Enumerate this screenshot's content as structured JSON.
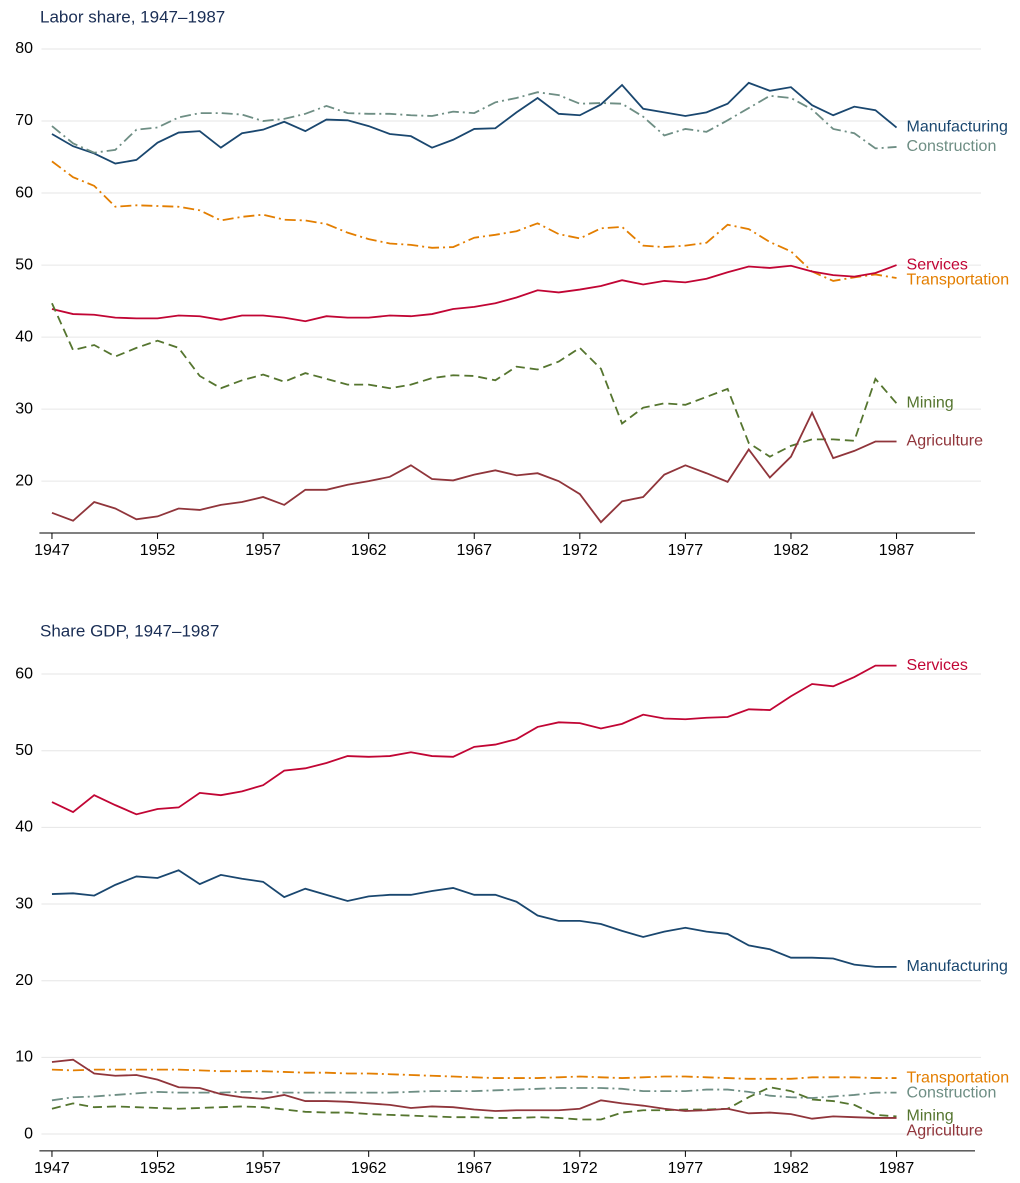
{
  "chart_data": [
    {
      "type": "line",
      "title": "Labor share, 1947–1987",
      "x": [
        1947,
        1948,
        1949,
        1950,
        1951,
        1952,
        1953,
        1954,
        1955,
        1956,
        1957,
        1958,
        1959,
        1960,
        1961,
        1962,
        1963,
        1964,
        1965,
        1966,
        1967,
        1968,
        1969,
        1970,
        1971,
        1972,
        1973,
        1974,
        1975,
        1976,
        1977,
        1978,
        1979,
        1980,
        1981,
        1982,
        1983,
        1984,
        1985,
        1986,
        1987
      ],
      "xlim": [
        1946.5,
        1991
      ],
      "xticks": [
        1947,
        1952,
        1957,
        1962,
        1967,
        1972,
        1977,
        1982,
        1987
      ],
      "ylim": [
        12.8,
        81
      ],
      "yticks": [
        20,
        30,
        40,
        50,
        60,
        70,
        80
      ],
      "grid": true,
      "series": [
        {
          "name": "Manufacturing",
          "color": "#1a476f",
          "style": "solid",
          "values": [
            68.2,
            66.5,
            65.5,
            64.1,
            64.6,
            67.0,
            68.4,
            68.6,
            66.3,
            68.3,
            68.8,
            69.9,
            68.6,
            70.2,
            70.1,
            69.3,
            68.2,
            67.9,
            66.3,
            67.4,
            68.9,
            69.0,
            71.2,
            73.2,
            71.0,
            70.8,
            72.3,
            75.0,
            71.7,
            71.2,
            70.7,
            71.2,
            72.4,
            75.3,
            74.2,
            74.7,
            72.2,
            70.8,
            72.0,
            71.5,
            69.1
          ]
        },
        {
          "name": "Construction",
          "color": "#6e8e84",
          "style": "dashdot",
          "values": [
            69.3,
            66.9,
            65.6,
            66.0,
            68.8,
            69.1,
            70.5,
            71.1,
            71.1,
            70.9,
            70.0,
            70.3,
            71.0,
            72.1,
            71.1,
            71.0,
            71.0,
            70.8,
            70.7,
            71.3,
            71.1,
            72.6,
            73.2,
            74.0,
            73.6,
            72.4,
            72.5,
            72.4,
            70.6,
            68.0,
            68.9,
            68.5,
            70.1,
            71.8,
            73.5,
            73.2,
            71.6,
            68.9,
            68.3,
            66.2,
            66.4
          ]
        },
        {
          "name": "Transportation",
          "color": "#e37e00",
          "style": "dashdot",
          "values": [
            64.4,
            62.2,
            61.0,
            58.1,
            58.3,
            58.2,
            58.1,
            57.6,
            56.2,
            56.7,
            57.0,
            56.3,
            56.2,
            55.7,
            54.5,
            53.6,
            53.0,
            52.8,
            52.4,
            52.5,
            53.8,
            54.2,
            54.7,
            55.8,
            54.3,
            53.7,
            55.1,
            55.3,
            52.7,
            52.5,
            52.7,
            53.1,
            55.6,
            55.0,
            53.2,
            51.9,
            49.1,
            47.8,
            48.3,
            48.7,
            48.2
          ]
        },
        {
          "name": "Services",
          "color": "#c10534",
          "style": "solid",
          "values": [
            43.9,
            43.2,
            43.1,
            42.7,
            42.6,
            42.6,
            43.0,
            42.9,
            42.4,
            43.0,
            43.0,
            42.7,
            42.2,
            42.9,
            42.7,
            42.7,
            43.0,
            42.9,
            43.2,
            43.9,
            44.2,
            44.7,
            45.5,
            46.5,
            46.2,
            46.6,
            47.1,
            47.9,
            47.3,
            47.8,
            47.6,
            48.1,
            49.0,
            49.8,
            49.6,
            49.9,
            49.1,
            48.6,
            48.4,
            48.9,
            50.0
          ]
        },
        {
          "name": "Mining",
          "color": "#55752f",
          "style": "dash",
          "values": [
            44.7,
            38.2,
            38.9,
            37.3,
            38.5,
            39.5,
            38.5,
            34.6,
            32.9,
            34.0,
            34.8,
            33.8,
            35.0,
            34.2,
            33.4,
            33.4,
            32.9,
            33.4,
            34.3,
            34.7,
            34.6,
            34.0,
            35.9,
            35.5,
            36.6,
            38.5,
            35.6,
            28.0,
            30.2,
            30.8,
            30.6,
            31.7,
            32.8,
            25.3,
            23.4,
            24.9,
            25.8,
            25.8,
            25.6,
            34.2,
            30.8
          ]
        },
        {
          "name": "Agriculture",
          "color": "#90353b",
          "style": "solid",
          "values": [
            15.6,
            14.5,
            17.1,
            16.2,
            14.7,
            15.1,
            16.2,
            16.0,
            16.7,
            17.1,
            17.8,
            16.7,
            18.8,
            18.8,
            19.5,
            20.0,
            20.6,
            22.2,
            20.3,
            20.1,
            20.9,
            21.5,
            20.8,
            21.1,
            20.0,
            18.2,
            14.3,
            17.2,
            17.8,
            20.9,
            22.2,
            21.1,
            19.9,
            24.4,
            20.5,
            23.4,
            29.5,
            23.2,
            24.2,
            25.5,
            25.5
          ]
        }
      ]
    },
    {
      "type": "line",
      "title": "Share GDP, 1947–1987",
      "x": [
        1947,
        1948,
        1949,
        1950,
        1951,
        1952,
        1953,
        1954,
        1955,
        1956,
        1957,
        1958,
        1959,
        1960,
        1961,
        1962,
        1963,
        1964,
        1965,
        1966,
        1967,
        1968,
        1969,
        1970,
        1971,
        1972,
        1973,
        1974,
        1975,
        1976,
        1977,
        1978,
        1979,
        1980,
        1981,
        1982,
        1983,
        1984,
        1985,
        1986,
        1987
      ],
      "xlim": [
        1946.5,
        1991
      ],
      "xticks": [
        1947,
        1952,
        1957,
        1962,
        1967,
        1972,
        1977,
        1982,
        1987
      ],
      "ylim": [
        -2.2,
        62
      ],
      "yticks": [
        0,
        10,
        20,
        30,
        40,
        50,
        60
      ],
      "grid": true,
      "series": [
        {
          "name": "Services",
          "color": "#c10534",
          "style": "solid",
          "values": [
            43.3,
            42.0,
            44.2,
            42.9,
            41.7,
            42.4,
            42.6,
            44.5,
            44.2,
            44.7,
            45.5,
            47.4,
            47.7,
            48.4,
            49.3,
            49.2,
            49.3,
            49.8,
            49.3,
            49.2,
            50.5,
            50.8,
            51.5,
            53.1,
            53.7,
            53.6,
            52.9,
            53.5,
            54.7,
            54.2,
            54.1,
            54.3,
            54.4,
            55.4,
            55.3,
            57.1,
            58.7,
            58.4,
            59.6,
            61.1,
            61.1
          ]
        },
        {
          "name": "Manufacturing",
          "color": "#1a476f",
          "style": "solid",
          "values": [
            31.3,
            31.4,
            31.1,
            32.5,
            33.6,
            33.4,
            34.4,
            32.6,
            33.8,
            33.3,
            32.9,
            30.9,
            32.0,
            31.2,
            30.4,
            31.0,
            31.2,
            31.2,
            31.7,
            32.1,
            31.2,
            31.2,
            30.3,
            28.5,
            27.8,
            27.8,
            27.4,
            26.5,
            25.7,
            26.4,
            26.9,
            26.4,
            26.1,
            24.6,
            24.1,
            23.0,
            23.0,
            22.9,
            22.1,
            21.8,
            21.8
          ]
        },
        {
          "name": "Transportation",
          "color": "#e37e00",
          "style": "dashdot",
          "values": [
            8.4,
            8.3,
            8.4,
            8.4,
            8.4,
            8.4,
            8.4,
            8.3,
            8.2,
            8.2,
            8.2,
            8.1,
            8.0,
            8.0,
            7.9,
            7.9,
            7.8,
            7.7,
            7.6,
            7.5,
            7.4,
            7.3,
            7.3,
            7.3,
            7.4,
            7.5,
            7.4,
            7.3,
            7.4,
            7.5,
            7.5,
            7.4,
            7.3,
            7.2,
            7.2,
            7.2,
            7.4,
            7.4,
            7.4,
            7.3,
            7.3
          ]
        },
        {
          "name": "Construction",
          "color": "#6e8e84",
          "style": "dashdot",
          "values": [
            4.4,
            4.8,
            4.9,
            5.1,
            5.3,
            5.5,
            5.4,
            5.4,
            5.4,
            5.5,
            5.5,
            5.4,
            5.4,
            5.4,
            5.4,
            5.4,
            5.4,
            5.5,
            5.6,
            5.6,
            5.6,
            5.7,
            5.8,
            5.9,
            6.0,
            6.0,
            6.0,
            5.9,
            5.6,
            5.6,
            5.6,
            5.8,
            5.8,
            5.5,
            5.0,
            4.8,
            4.7,
            4.9,
            5.1,
            5.4,
            5.4
          ]
        },
        {
          "name": "Mining",
          "color": "#55752f",
          "style": "dash",
          "values": [
            3.3,
            4.0,
            3.5,
            3.6,
            3.5,
            3.4,
            3.3,
            3.4,
            3.5,
            3.6,
            3.5,
            3.2,
            2.9,
            2.8,
            2.8,
            2.6,
            2.5,
            2.4,
            2.3,
            2.2,
            2.2,
            2.1,
            2.1,
            2.2,
            2.1,
            1.9,
            1.9,
            2.8,
            3.1,
            3.1,
            3.2,
            3.2,
            3.3,
            4.8,
            6.1,
            5.6,
            4.5,
            4.3,
            3.8,
            2.5,
            2.3
          ]
        },
        {
          "name": "Agriculture",
          "color": "#90353b",
          "style": "solid",
          "values": [
            9.4,
            9.7,
            7.9,
            7.6,
            7.7,
            7.1,
            6.1,
            6.0,
            5.2,
            4.8,
            4.6,
            5.1,
            4.3,
            4.3,
            4.2,
            4.0,
            3.8,
            3.4,
            3.6,
            3.5,
            3.2,
            3.0,
            3.1,
            3.1,
            3.1,
            3.3,
            4.4,
            4.0,
            3.7,
            3.3,
            3.0,
            3.1,
            3.3,
            2.7,
            2.8,
            2.6,
            2.0,
            2.3,
            2.2,
            2.1,
            2.1
          ]
        }
      ]
    }
  ]
}
